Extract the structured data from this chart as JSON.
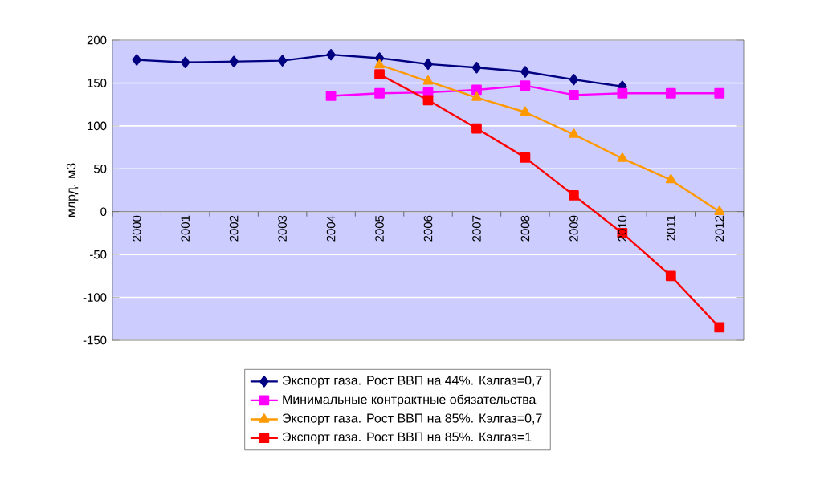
{
  "chart_data": {
    "type": "line",
    "ylabel": "млрд. м3",
    "categories": [
      "2000",
      "2001",
      "2002",
      "2003",
      "2004",
      "2005",
      "2006",
      "2007",
      "2008",
      "2009",
      "2010",
      "2011",
      "2012"
    ],
    "series": [
      {
        "name": "Экспорт газа. Рост ВВП на 44%. Кэлгаз=0,7",
        "color": "#000080",
        "marker": "diamond",
        "values": [
          177,
          174,
          175,
          176,
          183,
          179,
          172,
          168,
          163,
          154,
          146,
          null,
          null
        ]
      },
      {
        "name": "Минимальные контрактные обязательства",
        "color": "#ff00ff",
        "marker": "square",
        "values": [
          null,
          null,
          null,
          null,
          135,
          138,
          139,
          142,
          147,
          136,
          138,
          138,
          138
        ]
      },
      {
        "name": "Экспорт газа. Рост ВВП на 85%. Кэлгаз=0,7",
        "color": "#ff9900",
        "marker": "triangle",
        "values": [
          null,
          null,
          null,
          null,
          null,
          171,
          152,
          133,
          116,
          90,
          62,
          37,
          0
        ]
      },
      {
        "name": "Экспорт газа. Рост ВВП на 85%. Кэлгаз=1",
        "color": "#ff0000",
        "marker": "square",
        "values": [
          null,
          null,
          null,
          null,
          null,
          160,
          130,
          97,
          63,
          19,
          -25,
          -75,
          -135
        ]
      }
    ],
    "ylim": [
      -150,
      200
    ],
    "yticks": [
      -150,
      -100,
      -50,
      0,
      50,
      100,
      150,
      200
    ],
    "grid": "y",
    "legend": "bottom",
    "line_style": "solid"
  }
}
